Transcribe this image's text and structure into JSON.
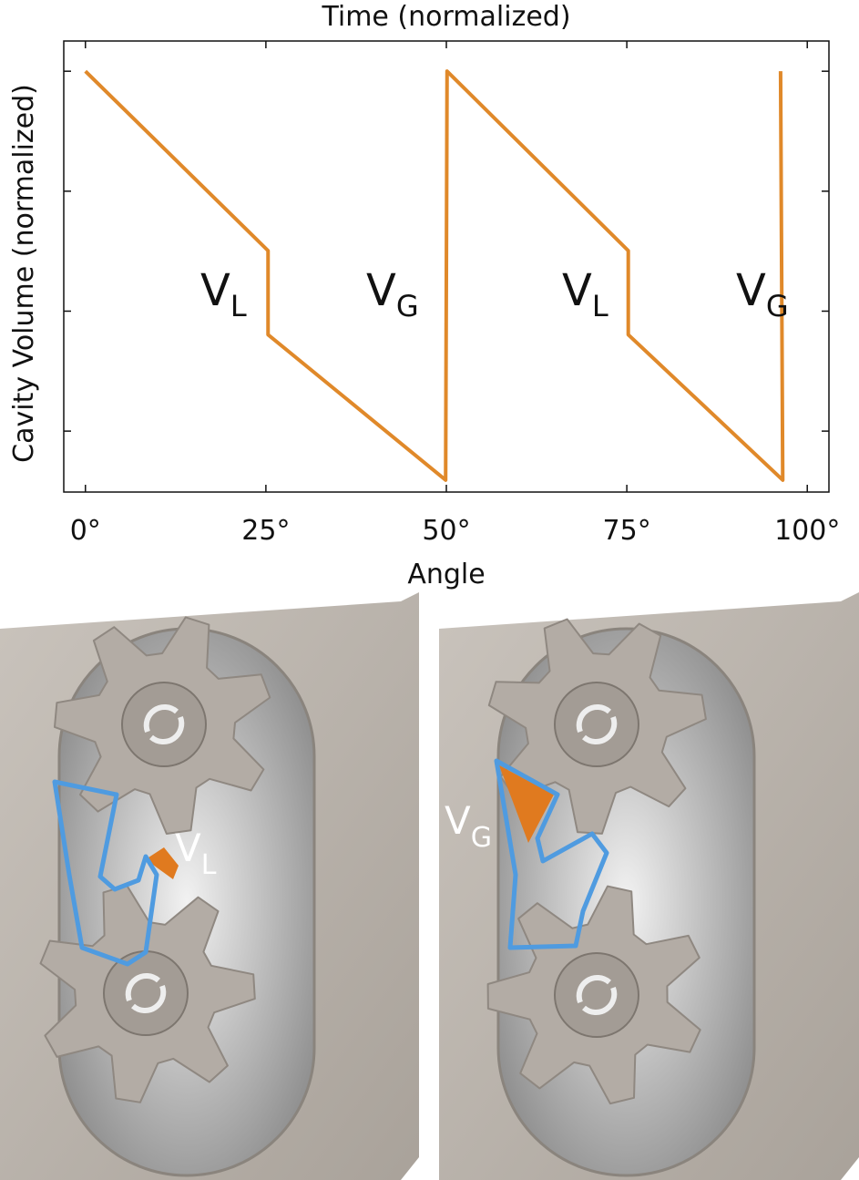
{
  "chart_data": {
    "type": "line",
    "title": "Time (normalized)",
    "xlabel": "Angle",
    "ylabel": "Cavity Volume (normalized)",
    "x": [
      0,
      25.3,
      25.3,
      49.9,
      50.1,
      75.2,
      75.2,
      96.6,
      96.3
    ],
    "series": [
      {
        "color": "#e0892a",
        "values": [
          1.0,
          0.626,
          0.451,
          0.148,
          1.0,
          0.626,
          0.451,
          0.148,
          1.0
        ]
      }
    ],
    "xlim": [
      -3,
      103
    ],
    "xticks": [
      {
        "value": 0,
        "label": "0°"
      },
      {
        "value": 25,
        "label": "25°"
      },
      {
        "value": 50,
        "label": "50°"
      },
      {
        "value": 75,
        "label": "75°"
      },
      {
        "value": 100,
        "label": "100°"
      }
    ],
    "ylim": [
      0.123,
      1.063
    ],
    "yticks": [
      0.25,
      0.5,
      0.75,
      1.0
    ],
    "ytick_labels": false,
    "annotations": [
      {
        "text": "V",
        "subscript": "L"
      },
      {
        "text": "V",
        "subscript": "G"
      },
      {
        "text": "V",
        "subscript": "L"
      },
      {
        "text": "V",
        "subscript": "G"
      }
    ]
  },
  "illustrations": [
    {
      "label": "V",
      "subscript": "L"
    },
    {
      "label": "V",
      "subscript": "G"
    }
  ]
}
